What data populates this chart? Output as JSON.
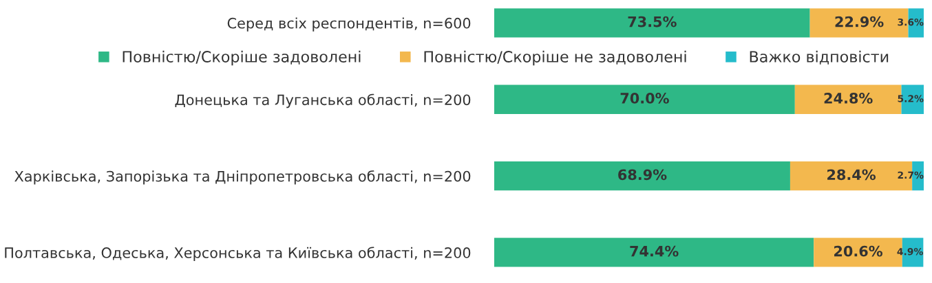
{
  "chart_data": {
    "type": "bar",
    "orientation": "horizontal",
    "stacked": true,
    "legend": "top",
    "grid": false,
    "categories": [
      "Серед всіх респондентів, n=600",
      "Донецька та Луганська області, n=200",
      "Харківська, Запорізька та Дніпропетровська області, n=200",
      "Полтавська, Одеська, Херсонська та Київська області, n=200"
    ],
    "series": [
      {
        "name": "Повністю/Скоріше задоволені",
        "color": "#2eb886",
        "values": [
          73.5,
          70.0,
          68.9,
          74.4
        ],
        "value_labels": [
          "73.5%",
          "70.0%",
          "68.9%",
          "74.4%"
        ]
      },
      {
        "name": "Повністю/Скоріше не задоволені",
        "color": "#f3b84e",
        "values": [
          22.9,
          24.8,
          28.4,
          20.6
        ],
        "value_labels": [
          "22.9%",
          "24.8%",
          "28.4%",
          "20.6%"
        ]
      },
      {
        "name": "Важко відповісти",
        "color": "#25bccb",
        "values": [
          3.6,
          5.2,
          2.7,
          4.9
        ],
        "value_labels": [
          "3.6%",
          "5.2%",
          "2.7%",
          "4.9%"
        ]
      }
    ]
  }
}
